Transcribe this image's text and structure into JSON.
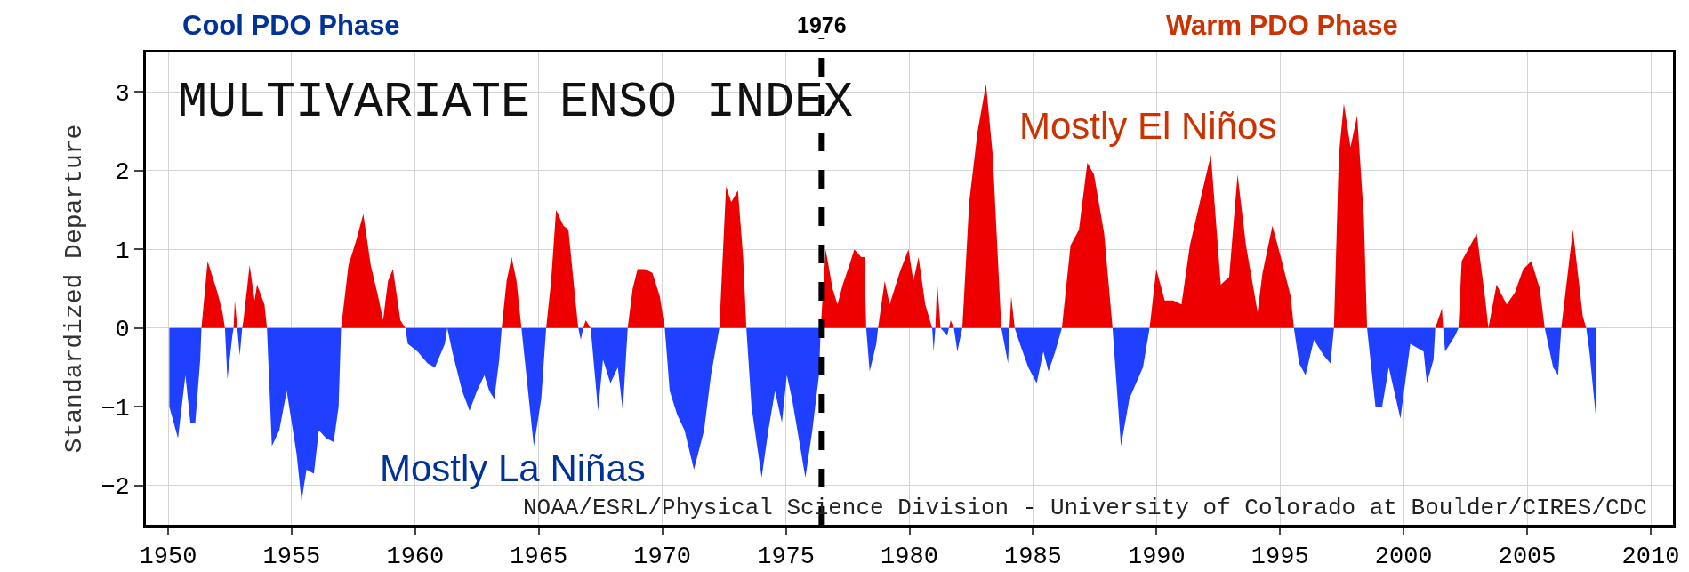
{
  "chart_data": {
    "type": "area",
    "title": "MULTIVARIATE ENSO INDEX",
    "ylabel": "Standardized Departure",
    "annotations": [
      "Cool PDO Phase",
      "Warm PDO Phase",
      "Mostly El Niños",
      "Mostly La Niñas",
      "NOAA/ESRL/Physical Science Division - University of Colorado at Boulder/CIRES/CDC"
    ],
    "series": [
      {
        "color": "#ee0000",
        "x": [
          1951.35,
          1951.6,
          1952.0,
          1952.2,
          1952.3,
          1952.65,
          1952.7,
          1952.8,
          1953.0,
          1953.05,
          1953.3,
          1953.5,
          1953.6,
          1953.9,
          1954.0,
          1957.0,
          1957.3,
          1957.6,
          1957.9,
          1958.2,
          1958.5,
          1958.7,
          1958.9,
          1959.1,
          1959.4,
          1959.6,
          1963.5,
          1963.7,
          1963.9,
          1964.1,
          1964.3,
          1965.3,
          1965.5,
          1965.7,
          1966.0,
          1966.2,
          1966.5,
          1966.6,
          1966.8,
          1966.9,
          1967.1,
          1968.6,
          1968.8,
          1969.0,
          1969.3,
          1969.6,
          1969.9,
          1970.1,
          1972.31,
          1972.58,
          1972.79,
          1973.06,
          1973.27,
          1973.4,
          1976.41,
          1976.61,
          1976.89,
          1977.09,
          1977.3,
          1977.57,
          1977.77,
          1978.05,
          1978.18,
          1978.25,
          1978.73,
          1979.0,
          1979.2,
          1979.6,
          1979.96,
          1980.16,
          1980.37,
          1980.64,
          1980.92,
          1981.05,
          1981.12,
          1981.26,
          1981.6,
          1981.67,
          1981.8,
          1982.14,
          1982.42,
          1982.76,
          1983.1,
          1983.37,
          1983.72,
          1984.05,
          1984.12,
          1984.26,
          1986.17,
          1986.52,
          1986.86,
          1987.2,
          1987.47,
          1987.88,
          1988.22,
          1989.72,
          1989.99,
          1990.33,
          1990.67,
          1991.01,
          1991.35,
          1991.9,
          1992.2,
          1992.6,
          1992.94,
          1993.28,
          1993.62,
          1994.09,
          1994.29,
          1994.69,
          1995.03,
          1995.43,
          1995.56,
          1997.18,
          1997.38,
          1997.58,
          1997.85,
          1998.12,
          1998.39,
          1998.52,
          2001.28,
          2001.55,
          2001.6,
          2002.22,
          2002.35,
          2002.96,
          2003.29,
          2003.43,
          2003.76,
          2004.17,
          2004.5,
          2004.84,
          2005.17,
          2005.51,
          2005.71,
          2006.38,
          2006.85,
          2007.25,
          2007.39
        ],
        "values": [
          0,
          0.85,
          0.45,
          0.2,
          0,
          0,
          0.35,
          0,
          0,
          0.1,
          0.8,
          0.35,
          0.55,
          0.3,
          0,
          0,
          0.8,
          1.1,
          1.45,
          0.8,
          0.4,
          0.1,
          0.6,
          0.75,
          0.1,
          0,
          0,
          0.6,
          0.9,
          0.6,
          0,
          0,
          0.6,
          1.5,
          1.3,
          1.25,
          0.3,
          0,
          0,
          0.1,
          0,
          0,
          0.5,
          0.75,
          0.75,
          0.7,
          0.4,
          0,
          0,
          1.8,
          1.6,
          1.75,
          0.9,
          0,
          0,
          1.0,
          0.5,
          0.3,
          0.55,
          0.8,
          1.0,
          0.9,
          0.9,
          0,
          0,
          0.6,
          0.3,
          0.7,
          1.0,
          0.6,
          0.9,
          0.3,
          0,
          0,
          0.6,
          0,
          0,
          0.1,
          0,
          0,
          1.6,
          2.5,
          3.1,
          2.2,
          0,
          0,
          0.4,
          0,
          0,
          1.05,
          1.25,
          2.1,
          1.95,
          1.2,
          0,
          0,
          0.75,
          0.35,
          0.35,
          0.3,
          1.05,
          1.8,
          2.2,
          0.55,
          0.65,
          1.95,
          1.05,
          0.2,
          0.7,
          1.3,
          0.9,
          0.4,
          0,
          0,
          2.2,
          2.85,
          2.3,
          2.7,
          1.4,
          0,
          0,
          0.25,
          0,
          0,
          0.85,
          1.2,
          0.4,
          0,
          0.55,
          0.3,
          0.45,
          0.75,
          0.85,
          0.5,
          0,
          0,
          1.25,
          0.15,
          0
        ]
      },
      {
        "color": "#2040ff",
        "x": [
          1950.05,
          1950.4,
          1950.7,
          1950.9,
          1951.1,
          1951.3,
          1951.35,
          1952.3,
          1952.4,
          1952.6,
          1952.65,
          1952.8,
          1952.9,
          1953.0,
          1954.0,
          1954.2,
          1954.5,
          1954.8,
          1955.2,
          1955.4,
          1955.6,
          1955.9,
          1956.1,
          1956.4,
          1956.7,
          1956.9,
          1957.0,
          1959.6,
          1959.7,
          1960.1,
          1960.5,
          1960.8,
          1961.2,
          1961.3,
          1961.5,
          1961.9,
          1962.2,
          1962.5,
          1962.8,
          1963.0,
          1963.2,
          1963.4,
          1963.5,
          1964.3,
          1964.5,
          1964.8,
          1965.1,
          1965.3,
          1966.6,
          1966.7,
          1966.8,
          1967.1,
          1967.4,
          1967.6,
          1967.9,
          1968.2,
          1968.4,
          1968.6,
          1970.1,
          1970.3,
          1970.6,
          1970.9,
          1971.28,
          1971.69,
          1971.97,
          1972.31,
          1973.4,
          1973.61,
          1974.02,
          1974.29,
          1974.56,
          1974.84,
          1975.04,
          1975.25,
          1975.79,
          1976.07,
          1976.34,
          1976.41,
          1978.25,
          1978.39,
          1978.66,
          1978.73,
          1980.92,
          1980.98,
          1981.05,
          1981.26,
          1981.53,
          1981.6,
          1981.8,
          1981.94,
          1982.14,
          1983.72,
          1983.99,
          1984.05,
          1984.26,
          1984.47,
          1984.81,
          1985.15,
          1985.42,
          1985.63,
          1985.9,
          1986.17,
          1988.22,
          1988.56,
          1988.9,
          1989.45,
          1989.72,
          1995.56,
          1995.77,
          1996.03,
          1996.37,
          1996.77,
          1997.04,
          1997.18,
          1998.52,
          1998.86,
          1999.13,
          1999.4,
          1999.87,
          2000.27,
          2000.81,
          2000.94,
          2001.21,
          2001.28,
          2001.6,
          2001.68,
          2002.08,
          2002.22,
          2005.71,
          2006.05,
          2006.25,
          2006.38,
          2007.39,
          2007.52,
          2007.77
        ],
        "values": [
          -1.0,
          -1.4,
          -0.6,
          -1.2,
          -1.2,
          -0.4,
          0,
          0,
          -0.65,
          -0.1,
          0,
          0,
          -0.35,
          0,
          0,
          -1.5,
          -1.3,
          -0.8,
          -1.6,
          -2.2,
          -1.8,
          -1.85,
          -1.3,
          -1.4,
          -1.45,
          -1.0,
          0,
          0,
          -0.2,
          -0.3,
          -0.45,
          -0.5,
          -0.2,
          0,
          -0.3,
          -0.8,
          -1.05,
          -0.8,
          -0.6,
          -0.8,
          -0.9,
          -0.4,
          0,
          0,
          -0.6,
          -1.5,
          -0.9,
          0,
          0,
          -0.15,
          0,
          0,
          -1.05,
          -0.4,
          -0.7,
          -0.5,
          -1.05,
          0,
          0,
          -0.8,
          -1.1,
          -1.3,
          -1.8,
          -1.3,
          -0.6,
          0,
          0,
          -1.0,
          -1.9,
          -1.3,
          -0.8,
          -1.2,
          -0.6,
          -0.9,
          -1.9,
          -1.3,
          -0.6,
          0,
          0,
          -0.55,
          -0.2,
          0,
          0,
          -0.3,
          0,
          0,
          -0.1,
          0,
          0,
          -0.3,
          0,
          0,
          -0.45,
          0,
          0,
          -0.2,
          -0.5,
          -0.7,
          -0.3,
          -0.55,
          -0.3,
          0,
          0,
          -1.5,
          -0.9,
          -0.5,
          0,
          0,
          -0.45,
          -0.6,
          -0.15,
          -0.35,
          -0.45,
          0,
          0,
          -1.0,
          -1.0,
          -0.5,
          -1.15,
          -0.2,
          -0.3,
          -0.7,
          -0.4,
          0,
          0,
          -0.3,
          -0.1,
          0,
          0,
          -0.5,
          -0.6,
          0,
          0,
          -0.3,
          -1.1
        ]
      }
    ],
    "xlim": [
      1949.1,
      2010.9
    ],
    "xticks": [
      1950,
      1955,
      1960,
      1965,
      1970,
      1975,
      1980,
      1985,
      1990,
      1995,
      2000,
      2005,
      2010
    ],
    "ylim": [
      -2.5,
      3.5
    ],
    "yticks": [
      -2,
      -1,
      0,
      1,
      2,
      3
    ],
    "ref_lines": [
      {
        "axis": "x",
        "value": 1976.45,
        "label": "1976",
        "color": "#000000",
        "line_style": "dashed"
      }
    ],
    "grid": true
  }
}
